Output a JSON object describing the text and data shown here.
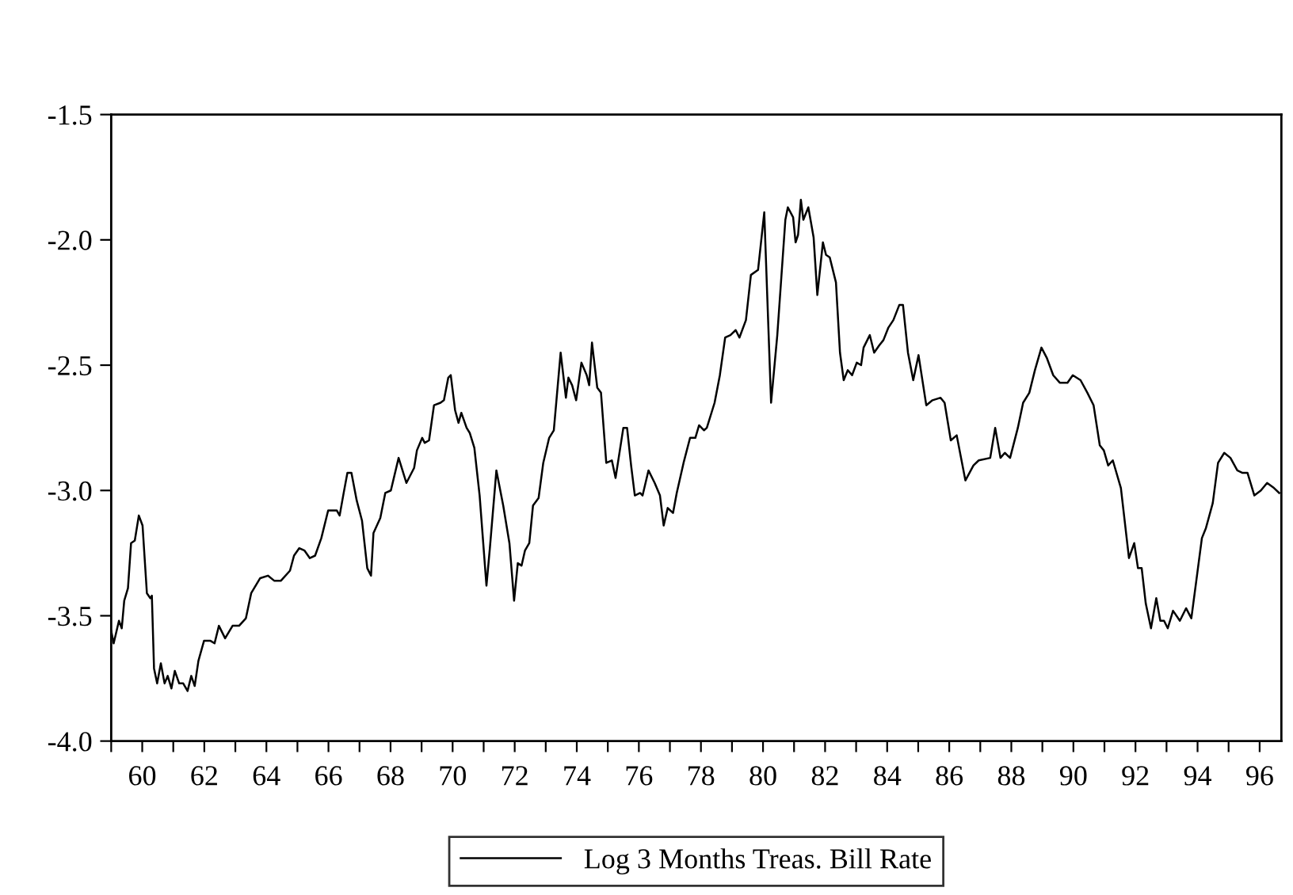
{
  "chart_data": {
    "type": "line",
    "x": [
      59.0,
      59.08,
      59.25,
      59.34,
      59.42,
      59.54,
      59.64,
      59.76,
      59.89,
      60.01,
      60.15,
      60.26,
      60.31,
      60.38,
      60.48,
      60.6,
      60.72,
      60.82,
      60.94,
      61.05,
      61.19,
      61.32,
      61.46,
      61.58,
      61.69,
      61.81,
      61.99,
      62.2,
      62.33,
      62.47,
      62.67,
      62.91,
      63.12,
      63.34,
      63.51,
      63.8,
      64.05,
      64.25,
      64.47,
      64.76,
      64.89,
      65.06,
      65.23,
      65.4,
      65.57,
      65.77,
      65.99,
      66.27,
      66.36,
      66.49,
      66.61,
      66.74,
      66.91,
      67.08,
      67.25,
      67.37,
      67.45,
      67.67,
      67.83,
      68.01,
      68.26,
      68.51,
      68.76,
      68.85,
      69.02,
      69.1,
      69.24,
      69.4,
      69.61,
      69.72,
      69.86,
      69.94,
      70.08,
      70.19,
      70.28,
      70.45,
      70.55,
      70.7,
      70.87,
      71.09,
      71.2,
      71.41,
      71.63,
      71.83,
      71.98,
      72.1,
      72.22,
      72.33,
      72.47,
      72.59,
      72.77,
      72.92,
      73.11,
      73.26,
      73.48,
      73.65,
      73.73,
      73.85,
      73.98,
      74.15,
      74.32,
      74.4,
      74.49,
      74.66,
      74.78,
      74.95,
      75.13,
      75.25,
      75.5,
      75.62,
      75.75,
      75.87,
      76.04,
      76.12,
      76.31,
      76.51,
      76.68,
      76.8,
      76.93,
      77.1,
      77.22,
      77.44,
      77.65,
      77.82,
      77.94,
      78.1,
      78.19,
      78.44,
      78.61,
      78.78,
      78.95,
      79.12,
      79.24,
      79.45,
      79.61,
      79.84,
      80.04,
      80.26,
      80.46,
      80.72,
      80.8,
      80.97,
      81.05,
      81.13,
      81.22,
      81.3,
      81.46,
      81.63,
      81.75,
      81.93,
      82.03,
      82.15,
      82.23,
      82.35,
      82.48,
      82.6,
      82.73,
      82.87,
      83.02,
      83.16,
      83.24,
      83.44,
      83.58,
      83.75,
      83.88,
      84.04,
      84.2,
      84.39,
      84.51,
      84.67,
      84.84,
      85.01,
      85.26,
      85.46,
      85.72,
      85.85,
      86.05,
      86.24,
      86.52,
      86.78,
      86.95,
      87.32,
      87.48,
      87.65,
      87.79,
      87.96,
      88.21,
      88.38,
      88.58,
      88.76,
      88.97,
      89.14,
      89.35,
      89.56,
      89.81,
      89.98,
      90.23,
      90.45,
      90.65,
      90.85,
      90.98,
      91.12,
      91.27,
      91.53,
      91.79,
      91.96,
      92.08,
      92.2,
      92.33,
      92.5,
      92.67,
      92.8,
      92.92,
      93.04,
      93.21,
      93.43,
      93.63,
      93.8,
      93.96,
      94.14,
      94.27,
      94.49,
      94.66,
      94.86,
      95.06,
      95.28,
      95.45,
      95.61,
      95.83,
      96.04,
      96.24,
      96.46,
      96.63
    ],
    "series": [
      {
        "name": "Log 3 Months Treas. Bill Rate",
        "color": "#000000",
        "values": [
          -3.56,
          -3.61,
          -3.52,
          -3.55,
          -3.44,
          -3.39,
          -3.21,
          -3.2,
          -3.1,
          -3.14,
          -3.41,
          -3.43,
          -3.42,
          -3.71,
          -3.77,
          -3.69,
          -3.77,
          -3.74,
          -3.79,
          -3.72,
          -3.77,
          -3.77,
          -3.8,
          -3.74,
          -3.78,
          -3.68,
          -3.6,
          -3.6,
          -3.61,
          -3.54,
          -3.59,
          -3.54,
          -3.54,
          -3.51,
          -3.41,
          -3.35,
          -3.34,
          -3.36,
          -3.36,
          -3.32,
          -3.26,
          -3.23,
          -3.24,
          -3.27,
          -3.26,
          -3.19,
          -3.08,
          -3.08,
          -3.1,
          -3.01,
          -2.93,
          -2.93,
          -3.04,
          -3.12,
          -3.31,
          -3.34,
          -3.17,
          -3.11,
          -3.01,
          -3.0,
          -2.87,
          -2.97,
          -2.91,
          -2.84,
          -2.79,
          -2.81,
          -2.8,
          -2.66,
          -2.65,
          -2.64,
          -2.55,
          -2.54,
          -2.68,
          -2.73,
          -2.69,
          -2.75,
          -2.77,
          -2.83,
          -3.02,
          -3.38,
          -3.23,
          -2.92,
          -3.06,
          -3.21,
          -3.44,
          -3.29,
          -3.3,
          -3.24,
          -3.21,
          -3.06,
          -3.03,
          -2.89,
          -2.79,
          -2.76,
          -2.45,
          -2.63,
          -2.55,
          -2.58,
          -2.64,
          -2.49,
          -2.54,
          -2.58,
          -2.41,
          -2.59,
          -2.61,
          -2.89,
          -2.88,
          -2.95,
          -2.75,
          -2.75,
          -2.9,
          -3.02,
          -3.01,
          -3.02,
          -2.92,
          -2.97,
          -3.02,
          -3.14,
          -3.07,
          -3.09,
          -3.01,
          -2.89,
          -2.79,
          -2.79,
          -2.74,
          -2.76,
          -2.75,
          -2.65,
          -2.54,
          -2.39,
          -2.38,
          -2.36,
          -2.39,
          -2.32,
          -2.14,
          -2.12,
          -1.89,
          -2.65,
          -2.38,
          -1.92,
          -1.87,
          -1.91,
          -2.01,
          -1.98,
          -1.84,
          -1.92,
          -1.87,
          -1.99,
          -2.22,
          -2.01,
          -2.06,
          -2.07,
          -2.11,
          -2.17,
          -2.45,
          -2.56,
          -2.52,
          -2.54,
          -2.49,
          -2.5,
          -2.43,
          -2.38,
          -2.45,
          -2.42,
          -2.4,
          -2.35,
          -2.32,
          -2.26,
          -2.26,
          -2.45,
          -2.56,
          -2.46,
          -2.66,
          -2.64,
          -2.63,
          -2.65,
          -2.8,
          -2.78,
          -2.96,
          -2.9,
          -2.88,
          -2.87,
          -2.75,
          -2.87,
          -2.85,
          -2.87,
          -2.75,
          -2.65,
          -2.61,
          -2.52,
          -2.43,
          -2.47,
          -2.54,
          -2.57,
          -2.57,
          -2.54,
          -2.56,
          -2.61,
          -2.66,
          -2.82,
          -2.84,
          -2.9,
          -2.88,
          -2.99,
          -3.27,
          -3.21,
          -3.31,
          -3.31,
          -3.45,
          -3.55,
          -3.43,
          -3.52,
          -3.52,
          -3.55,
          -3.48,
          -3.52,
          -3.47,
          -3.51,
          -3.36,
          -3.19,
          -3.15,
          -3.05,
          -2.89,
          -2.85,
          -2.87,
          -2.92,
          -2.93,
          -2.93,
          -3.02,
          -3.0,
          -2.97,
          -2.99,
          -3.01
        ]
      }
    ],
    "xlim": [
      59,
      96.7
    ],
    "xticks": [
      {
        "value": 59,
        "label": null
      },
      60,
      {
        "value": 61,
        "label": null
      },
      62,
      {
        "value": 63,
        "label": null
      },
      64,
      {
        "value": 65,
        "label": null
      },
      66,
      {
        "value": 67,
        "label": null
      },
      68,
      {
        "value": 69,
        "label": null
      },
      70,
      {
        "value": 71,
        "label": null
      },
      72,
      {
        "value": 73,
        "label": null
      },
      74,
      {
        "value": 75,
        "label": null
      },
      76,
      {
        "value": 77,
        "label": null
      },
      78,
      {
        "value": 79,
        "label": null
      },
      80,
      {
        "value": 81,
        "label": null
      },
      82,
      {
        "value": 83,
        "label": null
      },
      84,
      {
        "value": 85,
        "label": null
      },
      86,
      {
        "value": 87,
        "label": null
      },
      88,
      {
        "value": 89,
        "label": null
      },
      90,
      {
        "value": 91,
        "label": null
      },
      92,
      {
        "value": 93,
        "label": null
      },
      94,
      {
        "value": 95,
        "label": null
      },
      96
    ],
    "ylim": [
      -4.0,
      -1.5
    ],
    "yticks": [
      {
        "value": -4.0,
        "label": "-4.0"
      },
      {
        "value": -3.5,
        "label": "-3.5"
      },
      {
        "value": -3.0,
        "label": "-3.0"
      },
      {
        "value": -2.5,
        "label": "-2.5"
      },
      {
        "value": -2.0,
        "label": "-2.0"
      },
      {
        "value": -1.5,
        "label": "-1.5"
      }
    ],
    "grid": false,
    "legend": "bottom",
    "line_style": "solid",
    "marker": "none"
  }
}
